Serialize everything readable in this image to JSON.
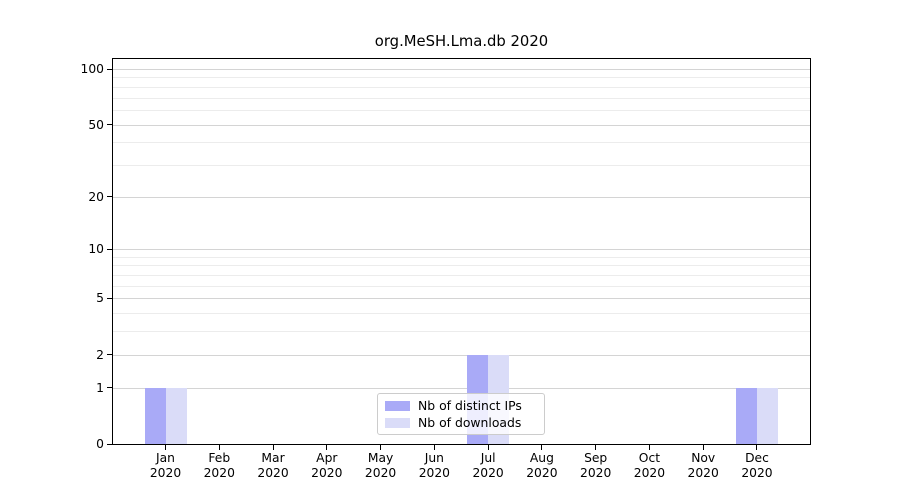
{
  "chart_data": {
    "type": "bar",
    "title": "org.MeSH.Lma.db 2020",
    "categories": [
      "Jan",
      "Feb",
      "Mar",
      "Apr",
      "May",
      "Jun",
      "Jul",
      "Aug",
      "Sep",
      "Oct",
      "Nov",
      "Dec"
    ],
    "category_year": "2020",
    "series": [
      {
        "name": "Nb of distinct IPs",
        "color": "#a9aaf7",
        "values": [
          1,
          0,
          0,
          0,
          0,
          0,
          2,
          0,
          0,
          0,
          0,
          1
        ]
      },
      {
        "name": "Nb of downloads",
        "color": "#dadcf8",
        "values": [
          1,
          0,
          0,
          0,
          0,
          0,
          2,
          0,
          0,
          0,
          0,
          1
        ]
      }
    ],
    "y_axis": {
      "scale": "log1p",
      "ylim": [
        0,
        100
      ],
      "major_ticks": [
        0,
        1,
        2,
        5,
        10,
        20,
        50,
        100
      ],
      "minor_ticks": [
        3,
        4,
        6,
        7,
        8,
        9,
        30,
        40,
        60,
        70,
        80,
        90
      ]
    },
    "grid": true,
    "legend_position": "bottom-center",
    "colors": {
      "grid_major": "#d4d4d4",
      "grid_minor": "#ececec",
      "axis": "#000000",
      "background": "#ffffff"
    }
  }
}
